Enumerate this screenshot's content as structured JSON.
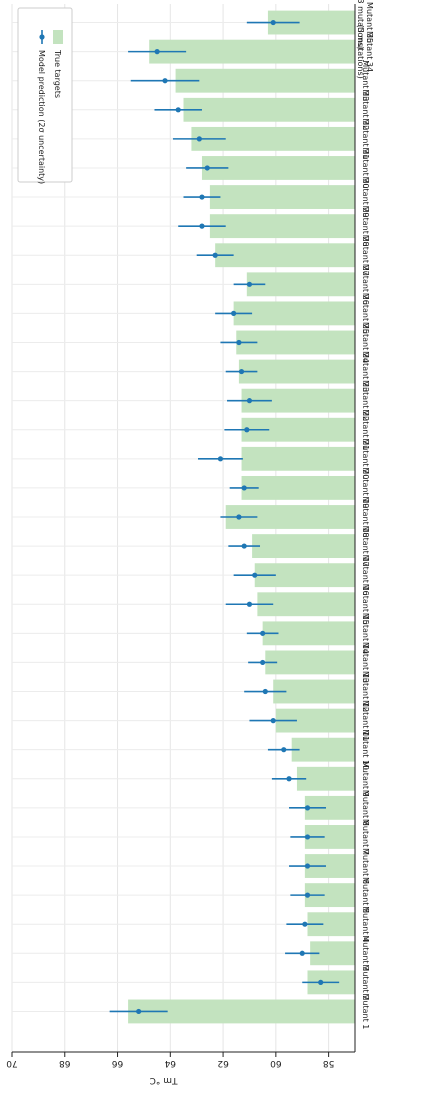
{
  "chart_data": {
    "type": "bar",
    "orientation": "rotated-180",
    "ylabel": "Tm °C",
    "ylim": [
      57,
      70
    ],
    "yticks": [
      58,
      60,
      62,
      64,
      66,
      68,
      70
    ],
    "grid": true,
    "legend_placement": "top-right",
    "categories": [
      "Mutant 1",
      "Mutant 2",
      "Mutant 3",
      "Mutant 4",
      "Mutant 5",
      "Mutant 6",
      "Mutant 7",
      "Mutant 8",
      "Mutant 9",
      "Mutant 10",
      "Mutant 11",
      "Mutant 12",
      "Mutant 13",
      "Mutant 14",
      "Mutant 15",
      "Mutant 16",
      "Mutant 17",
      "Mutant 18",
      "Mutant 19",
      "Mutant 20",
      "Mutant 21",
      "Mutant 22",
      "Mutant 23",
      "Mutant 24",
      "Mutant 25",
      "Mutant 26",
      "Mutant 27",
      "Mutant 28",
      "Mutant 29",
      "Mutant 30",
      "Mutant 31",
      "Mutant 32",
      "Mutant 33",
      "Mutant 34\n(3 mutations)",
      "Mutant 35\n(3 mutations)"
    ],
    "series": [
      {
        "name": "True targets",
        "kind": "bar",
        "color": "#c3e3bf",
        "values": [
          65.6,
          58.8,
          58.7,
          58.8,
          58.9,
          58.9,
          58.9,
          58.9,
          59.2,
          59.4,
          60.0,
          60.1,
          60.4,
          60.5,
          60.7,
          60.8,
          60.9,
          61.9,
          61.3,
          61.3,
          61.3,
          61.3,
          61.4,
          61.5,
          61.6,
          61.1,
          62.3,
          62.5,
          62.5,
          62.8,
          63.2,
          63.5,
          63.8,
          64.8,
          60.3
        ]
      },
      {
        "name": "Model prediction (2σ uncertainty)",
        "kind": "errorbar",
        "color": "#1f77b4",
        "values": [
          65.2,
          58.3,
          59.0,
          58.9,
          58.8,
          58.8,
          58.8,
          58.8,
          59.5,
          59.7,
          60.1,
          60.4,
          60.5,
          60.5,
          61.0,
          60.8,
          61.2,
          61.4,
          61.2,
          62.1,
          61.1,
          61.0,
          61.3,
          61.4,
          61.6,
          61.0,
          62.3,
          62.8,
          62.8,
          62.6,
          62.9,
          63.7,
          64.2,
          64.5,
          60.1
        ],
        "errors": [
          1.1,
          0.7,
          0.65,
          0.7,
          0.65,
          0.7,
          0.65,
          0.7,
          0.65,
          0.6,
          0.9,
          0.8,
          0.55,
          0.6,
          0.9,
          0.8,
          0.6,
          0.7,
          0.55,
          0.85,
          0.85,
          0.85,
          0.6,
          0.7,
          0.7,
          0.6,
          0.7,
          0.9,
          0.7,
          0.8,
          1.0,
          0.9,
          1.3,
          1.1,
          1.0
        ]
      }
    ],
    "legend": {
      "title": "",
      "entries": [
        {
          "label": "True targets",
          "series": 0
        },
        {
          "label": "Model prediction (2σ uncertainty)",
          "series": 1
        }
      ]
    }
  }
}
